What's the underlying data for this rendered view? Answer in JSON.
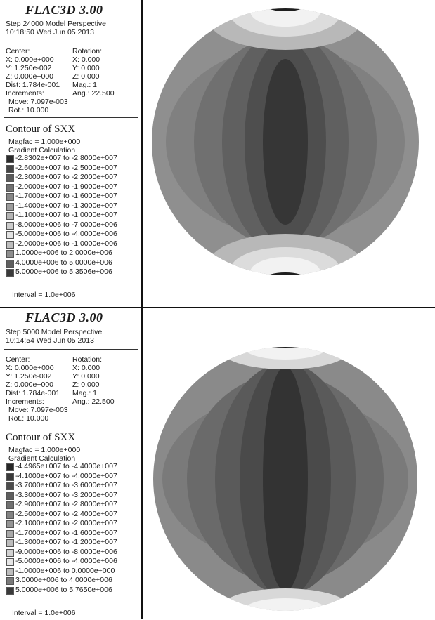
{
  "panels": [
    {
      "title": "FLAC3D 3.00",
      "step_line": "Step 24000  Model Perspective",
      "time_line": "10:18:50 Wed Jun 05 2013",
      "view": {
        "center_label": "Center:",
        "rotation_label": "Rotation:",
        "cx": "X: 0.000e+000",
        "cy": "Y: 1.250e-002",
        "cz": "Z: 0.000e+000",
        "rx": "X:  0.000",
        "ry": "Y:  0.000",
        "rz": "Z:  0.000",
        "dist": "Dist: 1.784e-001",
        "mag": "Mag.:     1",
        "increments": "Increments:",
        "ang": "Ang.:  22.500",
        "move": "Move: 7.097e-003",
        "rot": "Rot.:  10.000"
      },
      "contour_title": "Contour of SXX",
      "magfac": "Magfac = 1.000e+000",
      "gradient": "Gradient Calculation",
      "ranges": [
        {
          "label": "-2.8302e+007 to -2.8000e+007",
          "color": "#2c2c2c"
        },
        {
          "label": "-2.6000e+007 to -2.5000e+007",
          "color": "#444444"
        },
        {
          "label": "-2.3000e+007 to -2.2000e+007",
          "color": "#5a5a5a"
        },
        {
          "label": "-2.0000e+007 to -1.9000e+007",
          "color": "#707070"
        },
        {
          "label": "-1.7000e+007 to -1.6000e+007",
          "color": "#868686"
        },
        {
          "label": "-1.4000e+007 to -1.3000e+007",
          "color": "#9c9c9c"
        },
        {
          "label": "-1.1000e+007 to -1.0000e+007",
          "color": "#b4b4b4"
        },
        {
          "label": "-8.0000e+006 to -7.0000e+006",
          "color": "#cccccc"
        },
        {
          "label": "-5.0000e+006 to -4.0000e+006",
          "color": "#e2e2e2"
        },
        {
          "label": "-2.0000e+006 to -1.0000e+006",
          "color": "#bdbdbd"
        },
        {
          "label": " 1.0000e+006 to  2.0000e+006",
          "color": "#8e8e8e"
        },
        {
          "label": " 4.0000e+006 to  5.0000e+006",
          "color": "#5f5f5f"
        },
        {
          "label": " 5.0000e+006 to  5.3506e+006",
          "color": "#3a3a3a"
        }
      ],
      "interval": "Interval =  1.0e+006"
    },
    {
      "title": "FLAC3D 3.00",
      "step_line": "Step 5000  Model Perspective",
      "time_line": "10:14:54 Wed Jun 05 2013",
      "view": {
        "center_label": "Center:",
        "rotation_label": "Rotation:",
        "cx": "X: 0.000e+000",
        "cy": "Y: 1.250e-002",
        "cz": "Z: 0.000e+000",
        "rx": "X:  0.000",
        "ry": "Y:  0.000",
        "rz": "Z:  0.000",
        "dist": "Dist: 1.784e-001",
        "mag": "Mag.:     1",
        "increments": "Increments:",
        "ang": "Ang.:  22.500",
        "move": "Move: 7.097e-003",
        "rot": "Rot.:  10.000"
      },
      "contour_title": "Contour of SXX",
      "magfac": "Magfac = 1.000e+000",
      "gradient": "Gradient Calculation",
      "ranges": [
        {
          "label": "-4.4965e+007 to -4.4000e+007",
          "color": "#262626"
        },
        {
          "label": "-4.1000e+007 to -4.0000e+007",
          "color": "#3a3a3a"
        },
        {
          "label": "-3.7000e+007 to -3.6000e+007",
          "color": "#4c4c4c"
        },
        {
          "label": "-3.3000e+007 to -3.2000e+007",
          "color": "#5e5e5e"
        },
        {
          "label": "-2.9000e+007 to -2.8000e+007",
          "color": "#707070"
        },
        {
          "label": "-2.5000e+007 to -2.4000e+007",
          "color": "#828282"
        },
        {
          "label": "-2.1000e+007 to -2.0000e+007",
          "color": "#949494"
        },
        {
          "label": "-1.7000e+007 to -1.6000e+007",
          "color": "#a8a8a8"
        },
        {
          "label": "-1.3000e+007 to -1.2000e+007",
          "color": "#bcbcbc"
        },
        {
          "label": "-9.0000e+006 to -8.0000e+006",
          "color": "#d2d2d2"
        },
        {
          "label": "-5.0000e+006 to -4.0000e+006",
          "color": "#e6e6e6"
        },
        {
          "label": "-1.0000e+006 to  0.0000e+000",
          "color": "#bdbdbd"
        },
        {
          "label": " 3.0000e+006 to  4.0000e+006",
          "color": "#7a7a7a"
        },
        {
          "label": " 5.0000e+006 to  5.7650e+006",
          "color": "#3a3a3a"
        }
      ],
      "interval": "Interval =  1.0e+006"
    }
  ],
  "colors": {
    "outer_band": "#8a8a8a",
    "band_2": "#7a7a7a",
    "band_3": "#6a6a6a",
    "band_4": "#5a5a5a",
    "band_5": "#4a4a4a",
    "core": "#333333",
    "cap_light": "#f2f2f2",
    "cap_mid": "#d8d8d8",
    "cap_dark": "#1c1c1c"
  }
}
